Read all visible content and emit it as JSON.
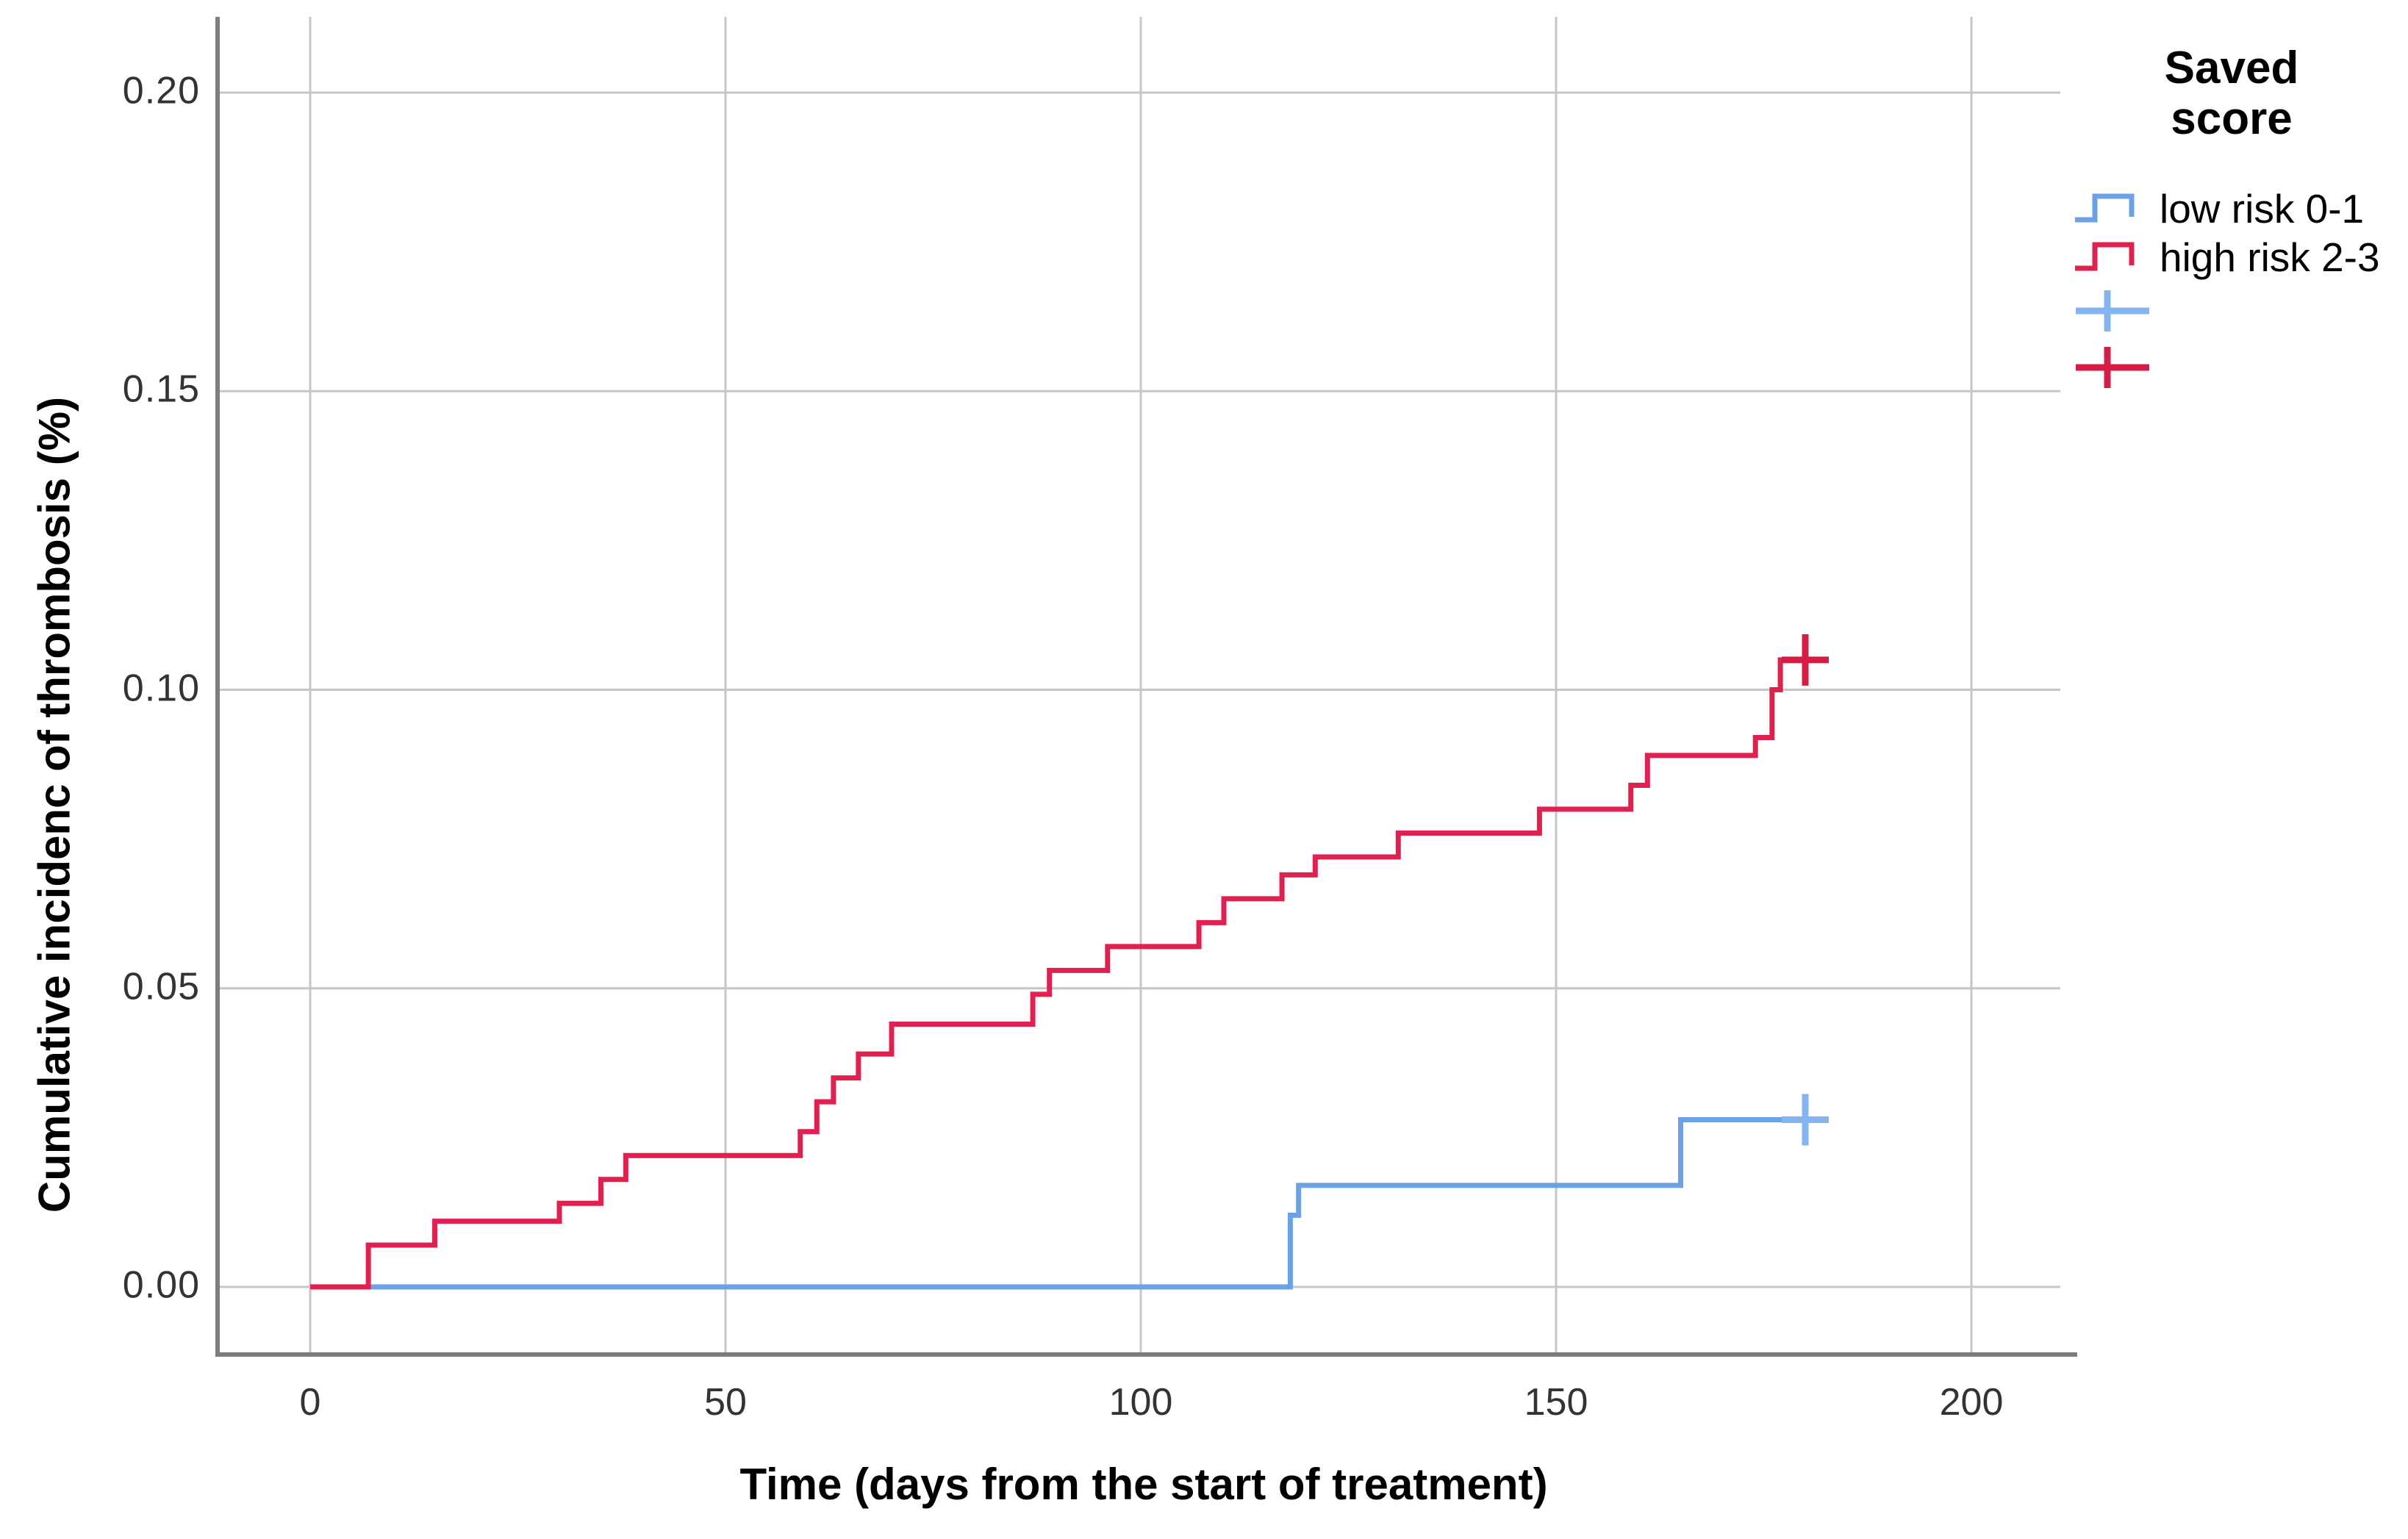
{
  "figure": {
    "x_axis_title": "Time (days from the start of treatment)",
    "y_axis_title": "Cumulative incidenc of thrombosis (%)",
    "legend_title": "Saved\nscore"
  },
  "chart_data": {
    "type": "line",
    "subtype": "step-cumulative-incidence",
    "title": "",
    "xlabel": "Time (days from the start of treatment)",
    "ylabel": "Cumulative incidenc of thrombosis (%)",
    "legend_title": "Saved score",
    "legend_position": "right",
    "grid": true,
    "xlim": [
      -11,
      211
    ],
    "ylim": [
      -0.012,
      0.213
    ],
    "xticks": [
      0,
      50,
      100,
      150,
      200
    ],
    "ytick_values": [
      0.0,
      0.05,
      0.1,
      0.15,
      0.2
    ],
    "ytick_labels": [
      "0.00",
      "0.05",
      "0.10",
      "0.15",
      "0.20"
    ],
    "colors": {
      "low_risk_line": "#6ba2e6",
      "low_risk_censor": "#84b5f0",
      "high_risk_line": "#e02150",
      "high_risk_censor": "#d61b45",
      "gridline": "#c6c6c6",
      "axis": "#7d7d7d"
    },
    "series": [
      {
        "name": "low risk 0-1",
        "color": "#6ba2e6",
        "censor_color": "#84b5f0",
        "steps": [
          [
            0,
            0.0
          ],
          [
            118,
            0.012
          ],
          [
            119,
            0.017
          ],
          [
            165,
            0.028
          ]
        ],
        "end": 180,
        "censor_at": [
          180,
          0.028
        ]
      },
      {
        "name": "high risk 2-3",
        "color": "#e02150",
        "censor_color": "#d61b45",
        "steps": [
          [
            0,
            0.0
          ],
          [
            7,
            0.007
          ],
          [
            15,
            0.011
          ],
          [
            30,
            0.014
          ],
          [
            35,
            0.018
          ],
          [
            38,
            0.022
          ],
          [
            59,
            0.026
          ],
          [
            61,
            0.031
          ],
          [
            63,
            0.035
          ],
          [
            66,
            0.039
          ],
          [
            70,
            0.044
          ],
          [
            87,
            0.049
          ],
          [
            89,
            0.053
          ],
          [
            96,
            0.057
          ],
          [
            107,
            0.061
          ],
          [
            110,
            0.065
          ],
          [
            117,
            0.069
          ],
          [
            121,
            0.072
          ],
          [
            131,
            0.076
          ],
          [
            148,
            0.08
          ],
          [
            159,
            0.084
          ],
          [
            161,
            0.089
          ],
          [
            174,
            0.092
          ],
          [
            176,
            0.1
          ],
          [
            177,
            0.105
          ]
        ],
        "end": 180,
        "censor_at": [
          180,
          0.105
        ]
      }
    ]
  }
}
